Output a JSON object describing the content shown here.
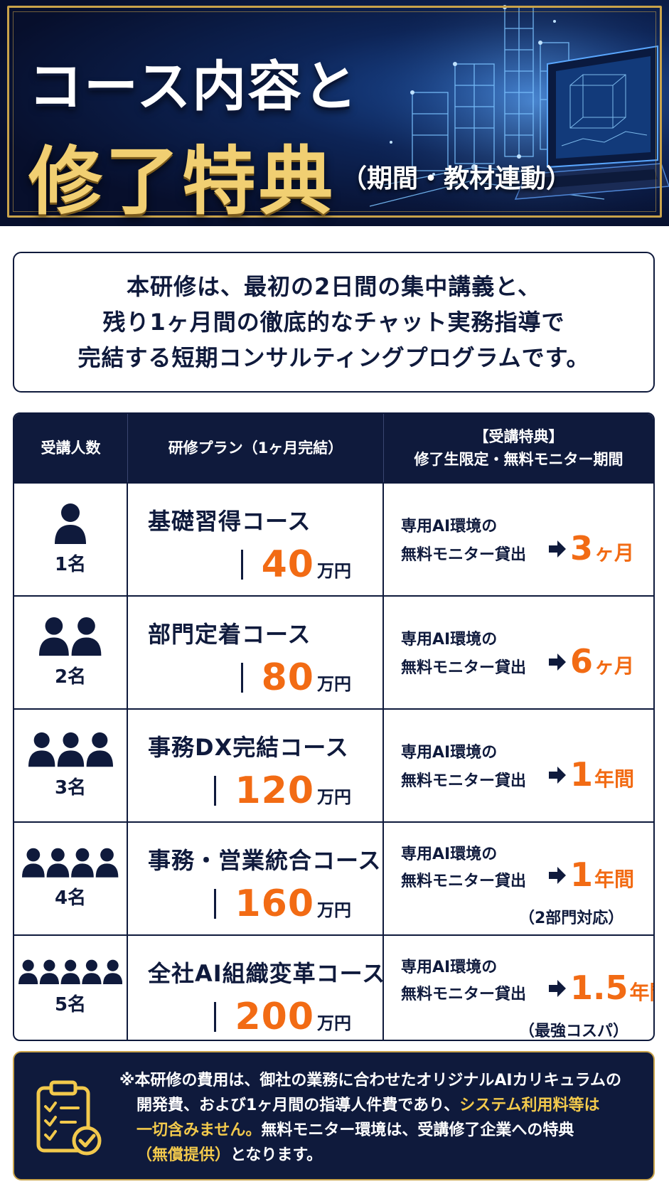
{
  "header": {
    "title_line1": "コース内容と",
    "title_line2": "修了特典",
    "title_sub": "（期間・教材連動）"
  },
  "intro": {
    "lines": [
      "本研修は、最初の2日間の集中講義と、",
      "残り1ヶ月間の徹底的なチャット実務指導で",
      "完結する短期コンサルティングプログラムです。"
    ]
  },
  "table": {
    "headers": {
      "col1": "受講人数",
      "col2": "研修プラン（1ヶ月完結）",
      "col3_line1": "【受講特典】",
      "col3_line2": "修了生限定・無料モニター期間"
    },
    "benefit_line1": "専用AI環境の",
    "benefit_line2": "無料モニター貸出",
    "price_unit": "万円",
    "rows": [
      {
        "people": 1,
        "count": "1名",
        "course": "基礎習得コース",
        "price": "40",
        "benefit_num": "3",
        "benefit_unit": "ヶ月",
        "note": ""
      },
      {
        "people": 2,
        "count": "2名",
        "course": "部門定着コース",
        "price": "80",
        "benefit_num": "6",
        "benefit_unit": "ヶ月",
        "note": ""
      },
      {
        "people": 3,
        "count": "3名",
        "course": "事務DX完結コース",
        "price": "120",
        "benefit_num": "1",
        "benefit_unit": "年間",
        "note": ""
      },
      {
        "people": 4,
        "count": "4名",
        "course": "事務・営業統合コース",
        "price": "160",
        "benefit_num": "1",
        "benefit_unit": "年間",
        "note": "（2部門対応）"
      },
      {
        "people": 5,
        "count": "5名",
        "course": "全社AI組織変革コース",
        "price": "200",
        "benefit_num": "1.5",
        "benefit_unit": "年間",
        "note": "（最強コスパ）"
      }
    ]
  },
  "note": {
    "line1": "※本研修の費用は、御社の業務に合わせたオリジナルAIカリキュラムの",
    "line2a": "開発費、および1ヶ月間の指導人件費であり、",
    "line2b": "システム利用料等は",
    "line3a": "一切含みません。",
    "line3b": "無料モニター環境は、受講修了企業への特典",
    "line4a": "（無償提供）",
    "line4b": "となります。",
    "icon": "clipboard-check-icon"
  },
  "colors": {
    "navy": "#0f1a3c",
    "orange": "#f26b14",
    "gold": "#f1cf72",
    "highlight": "#f2c94c"
  }
}
